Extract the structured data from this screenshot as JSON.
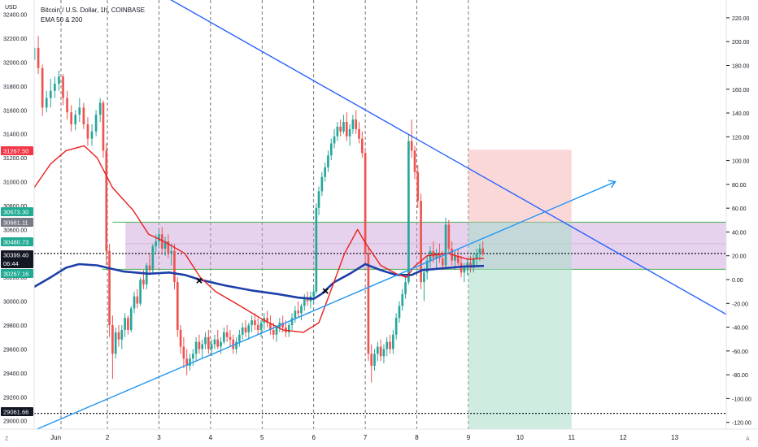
{
  "chart_data": {
    "type": "candlestick",
    "title": "Bitcoin / U.S. Dollar, 1h, COINBASE",
    "indicator": "EMA 50 & 200",
    "currency_label": "USD",
    "left_axis": {
      "ylim": [
        28930,
        32520
      ],
      "ticks": [
        29000,
        29200,
        29400,
        29600,
        29800,
        30000,
        30200,
        30400,
        30600,
        30800,
        31000,
        31200,
        31400,
        31600,
        31800,
        32000,
        32200,
        32400
      ],
      "tick_labels": [
        "29000.00",
        "29200.00",
        "29400.00",
        "29600.00",
        "29800.00",
        "30000.00",
        "30200.00",
        "30400.00",
        "30600.00",
        "30800.00",
        "31000.00",
        "31200.00",
        "31400.00",
        "31600.00",
        "31800.00",
        "32000.00",
        "32200.00",
        "32400.00"
      ]
    },
    "right_axis": {
      "ticks": [
        -120,
        -100,
        -80,
        -60,
        -40,
        -20,
        0,
        20,
        40,
        60,
        80,
        100,
        120,
        140,
        160,
        180,
        200,
        220
      ],
      "tick_labels": [
        "-120.00",
        "-100.00",
        "-80.00",
        "-60.00",
        "-40.00",
        "-20.00",
        "0.00",
        "20.00",
        "40.00",
        "60.00",
        "80.00",
        "100.00",
        "120.00",
        "140.00",
        "160.00",
        "180.00",
        "200.00",
        "220.00"
      ]
    },
    "x_axis": {
      "xlim": [
        0.58,
        14.0
      ],
      "ticks": [
        1,
        2,
        3,
        4,
        5,
        6,
        7,
        8,
        9,
        10,
        11,
        12,
        13
      ],
      "tick_labels": [
        "Jun",
        "2",
        "3",
        "4",
        "5",
        "6",
        "7",
        "8",
        "9",
        "10",
        "11",
        "12",
        "13"
      ]
    },
    "price_labels": [
      {
        "value": 31267.5,
        "text": "31267.50",
        "color": "#f23645"
      },
      {
        "value": 30673.3,
        "text": "30673.30",
        "color": "#22ab94"
      },
      {
        "value": 30661.11,
        "text": "30661.11",
        "color": "#787b86"
      },
      {
        "value": 30480.73,
        "text": "30480.73",
        "color": "#22ab94"
      },
      {
        "value": 30399.4,
        "text": "30399.40",
        "color": "#131722",
        "countdown": "06:44"
      },
      {
        "value": 30267.16,
        "text": "30267.16",
        "color": "#22ab94"
      },
      {
        "value": 29061.66,
        "text": "29061.66",
        "color": "#131722"
      }
    ],
    "range_box": {
      "x0": 2.35,
      "x1": 14.0,
      "top": 30661.11,
      "bottom": 30267.16,
      "color": "#c89bd8"
    },
    "short_position": {
      "x0": 9.0,
      "x1": 11.0,
      "entry": 30661.11,
      "stop": 31267.5,
      "target": 28930
    },
    "dotted_levels": [
      30399.4,
      29061.66
    ],
    "vertical_dashes": [
      1.1,
      2.0,
      3.0,
      4.0,
      5.0,
      6.0,
      7.0,
      8.0,
      9.0
    ],
    "trendlines": [
      {
        "name": "descending",
        "x0": 2.5,
        "y0": 32700,
        "x1": 14.0,
        "y1": 29890,
        "color": "#2962ff"
      },
      {
        "name": "ascending",
        "x0": 0.58,
        "y0": 28920,
        "x1": 11.85,
        "y1": 31000,
        "color": "#2196f3",
        "arrow": true
      }
    ],
    "markers": [
      {
        "x": 3.78,
        "y": 30172
      },
      {
        "x": 6.23,
        "y": 30085
      }
    ],
    "ema_fast": {
      "name": "EMA 50",
      "color": "#e91e1e",
      "points": [
        [
          0.58,
          30950
        ],
        [
          0.9,
          31150
        ],
        [
          1.2,
          31260
        ],
        [
          1.55,
          31300
        ],
        [
          1.8,
          31200
        ],
        [
          2.1,
          30950
        ],
        [
          2.5,
          30760
        ],
        [
          2.8,
          30560
        ],
        [
          3.1,
          30500
        ],
        [
          3.5,
          30400
        ],
        [
          3.8,
          30200
        ],
        [
          4.1,
          30080
        ],
        [
          4.5,
          29980
        ],
        [
          5.0,
          29850
        ],
        [
          5.4,
          29760
        ],
        [
          5.8,
          29740
        ],
        [
          6.1,
          29820
        ],
        [
          6.3,
          30050
        ],
        [
          6.6,
          30400
        ],
        [
          6.85,
          30600
        ],
        [
          7.0,
          30490
        ],
        [
          7.3,
          30300
        ],
        [
          7.6,
          30230
        ],
        [
          7.8,
          30200
        ],
        [
          7.95,
          30290
        ],
        [
          8.2,
          30380
        ],
        [
          8.6,
          30400
        ],
        [
          9.0,
          30350
        ],
        [
          9.3,
          30360
        ]
      ]
    },
    "ema_slow": {
      "name": "EMA 200",
      "color": "#1e3fa8",
      "points": [
        [
          0.58,
          30120
        ],
        [
          0.9,
          30200
        ],
        [
          1.2,
          30280
        ],
        [
          1.45,
          30310
        ],
        [
          1.8,
          30300
        ],
        [
          2.3,
          30250
        ],
        [
          2.8,
          30230
        ],
        [
          3.2,
          30240
        ],
        [
          3.5,
          30220
        ],
        [
          3.8,
          30180
        ],
        [
          4.3,
          30130
        ],
        [
          4.8,
          30090
        ],
        [
          5.3,
          30060
        ],
        [
          5.7,
          30030
        ],
        [
          6.0,
          30020
        ],
        [
          6.15,
          30060
        ],
        [
          6.4,
          30160
        ],
        [
          6.7,
          30230
        ],
        [
          7.0,
          30310
        ],
        [
          7.3,
          30260
        ],
        [
          7.6,
          30220
        ],
        [
          7.9,
          30220
        ],
        [
          8.1,
          30260
        ],
        [
          8.5,
          30275
        ],
        [
          8.9,
          30290
        ],
        [
          9.3,
          30295
        ]
      ]
    },
    "candles": [
      [
        0.58,
        32020,
        32180,
        31980,
        32120
      ],
      [
        0.66,
        32120,
        32220,
        31900,
        31950
      ],
      [
        0.74,
        31950,
        31980,
        31550,
        31620
      ],
      [
        0.82,
        31620,
        31760,
        31580,
        31700
      ],
      [
        0.9,
        31700,
        31860,
        31620,
        31760
      ],
      [
        0.98,
        31760,
        31880,
        31700,
        31820
      ],
      [
        1.06,
        31820,
        31930,
        31760,
        31880
      ],
      [
        1.14,
        31880,
        31900,
        31640,
        31700
      ],
      [
        1.22,
        31700,
        31760,
        31520,
        31580
      ],
      [
        1.3,
        31580,
        31640,
        31420,
        31480
      ],
      [
        1.38,
        31480,
        31600,
        31430,
        31560
      ],
      [
        1.46,
        31560,
        31700,
        31500,
        31620
      ],
      [
        1.54,
        31620,
        31660,
        31440,
        31480
      ],
      [
        1.62,
        31480,
        31540,
        31300,
        31360
      ],
      [
        1.7,
        31360,
        31480,
        31300,
        31420
      ],
      [
        1.78,
        31420,
        31600,
        31380,
        31560
      ],
      [
        1.86,
        31560,
        31700,
        31500,
        31660
      ],
      [
        1.92,
        31660,
        31680,
        31200,
        31260
      ],
      [
        1.98,
        31260,
        31320,
        30300,
        30420
      ],
      [
        2.04,
        30420,
        30480,
        29700,
        29800
      ],
      [
        2.1,
        29800,
        29880,
        29350,
        29560
      ],
      [
        2.16,
        29560,
        29780,
        29520,
        29740
      ],
      [
        2.22,
        29740,
        29800,
        29620,
        29680
      ],
      [
        2.28,
        29680,
        29800,
        29600,
        29760
      ],
      [
        2.34,
        29760,
        29900,
        29700,
        29860
      ],
      [
        2.4,
        29860,
        29880,
        29720,
        29760
      ],
      [
        2.46,
        29760,
        29960,
        29740,
        29940
      ],
      [
        2.52,
        29940,
        30080,
        29900,
        30040
      ],
      [
        2.58,
        30040,
        30100,
        29940,
        29980
      ],
      [
        2.64,
        29980,
        30200,
        29960,
        30180
      ],
      [
        2.7,
        30180,
        30260,
        30100,
        30140
      ],
      [
        2.76,
        30140,
        30320,
        30100,
        30300
      ],
      [
        2.82,
        30300,
        30400,
        30220,
        30260
      ],
      [
        2.88,
        30260,
        30480,
        30240,
        30460
      ],
      [
        2.94,
        30460,
        30560,
        30400,
        30500
      ],
      [
        3.0,
        30500,
        30600,
        30440,
        30560
      ],
      [
        3.06,
        30560,
        30620,
        30400,
        30440
      ],
      [
        3.12,
        30440,
        30540,
        30380,
        30500
      ],
      [
        3.18,
        30500,
        30560,
        30360,
        30400
      ],
      [
        3.24,
        30400,
        30480,
        30300,
        30420
      ],
      [
        3.3,
        30420,
        30480,
        30100,
        30160
      ],
      [
        3.36,
        30160,
        30200,
        29700,
        29760
      ],
      [
        3.42,
        29760,
        29800,
        29560,
        29620
      ],
      [
        3.48,
        29620,
        29700,
        29440,
        29520
      ],
      [
        3.54,
        29520,
        29600,
        29380,
        29460
      ],
      [
        3.6,
        29460,
        29560,
        29420,
        29520
      ],
      [
        3.66,
        29520,
        29600,
        29460,
        29560
      ],
      [
        3.72,
        29560,
        29700,
        29500,
        29660
      ],
      [
        3.78,
        29660,
        29720,
        29560,
        29600
      ],
      [
        3.84,
        29600,
        29680,
        29520,
        29640
      ],
      [
        3.9,
        29640,
        29740,
        29600,
        29700
      ],
      [
        3.96,
        29700,
        29760,
        29560,
        29600
      ],
      [
        4.02,
        29600,
        29680,
        29540,
        29640
      ],
      [
        4.08,
        29640,
        29720,
        29600,
        29680
      ],
      [
        4.14,
        29680,
        29760,
        29600,
        29620
      ],
      [
        4.2,
        29620,
        29700,
        29560,
        29660
      ],
      [
        4.26,
        29660,
        29780,
        29640,
        29740
      ],
      [
        4.32,
        29740,
        29800,
        29660,
        29700
      ],
      [
        4.38,
        29700,
        29760,
        29620,
        29680
      ],
      [
        4.44,
        29680,
        29720,
        29560,
        29600
      ],
      [
        4.5,
        29600,
        29700,
        29560,
        29660
      ],
      [
        4.56,
        29660,
        29760,
        29620,
        29720
      ],
      [
        4.62,
        29720,
        29820,
        29680,
        29780
      ],
      [
        4.68,
        29780,
        29840,
        29700,
        29740
      ],
      [
        4.74,
        29740,
        29820,
        29680,
        29800
      ],
      [
        4.8,
        29800,
        29880,
        29740,
        29840
      ],
      [
        4.86,
        29840,
        29900,
        29760,
        29800
      ],
      [
        4.92,
        29800,
        29860,
        29720,
        29760
      ],
      [
        4.98,
        29760,
        29840,
        29700,
        29820
      ],
      [
        5.04,
        29820,
        29900,
        29760,
        29860
      ],
      [
        5.1,
        29860,
        29920,
        29780,
        29820
      ],
      [
        5.16,
        29820,
        29880,
        29720,
        29760
      ],
      [
        5.22,
        29760,
        29820,
        29680,
        29720
      ],
      [
        5.28,
        29720,
        29800,
        29660,
        29780
      ],
      [
        5.34,
        29780,
        29860,
        29740,
        29820
      ],
      [
        5.4,
        29820,
        29880,
        29740,
        29780
      ],
      [
        5.46,
        29780,
        29840,
        29700,
        29740
      ],
      [
        5.52,
        29740,
        29820,
        29700,
        29800
      ],
      [
        5.58,
        29800,
        29900,
        29760,
        29860
      ],
      [
        5.64,
        29860,
        29960,
        29820,
        29920
      ],
      [
        5.7,
        29920,
        30000,
        29860,
        29900
      ],
      [
        5.76,
        29900,
        29980,
        29840,
        29960
      ],
      [
        5.82,
        29960,
        30060,
        29920,
        30020
      ],
      [
        5.88,
        30020,
        30080,
        29960,
        30000
      ],
      [
        5.94,
        30000,
        30080,
        29940,
        30040
      ],
      [
        6.0,
        30040,
        30120,
        29980,
        30080
      ],
      [
        6.05,
        30080,
        30820,
        30060,
        30780
      ],
      [
        6.1,
        30780,
        30960,
        30720,
        30920
      ],
      [
        6.16,
        30920,
        31080,
        30880,
        31040
      ],
      [
        6.22,
        31040,
        31160,
        31000,
        31120
      ],
      [
        6.28,
        31120,
        31260,
        31080,
        31220
      ],
      [
        6.34,
        31220,
        31360,
        31180,
        31320
      ],
      [
        6.4,
        31320,
        31440,
        31280,
        31380
      ],
      [
        6.46,
        31380,
        31500,
        31340,
        31460
      ],
      [
        6.52,
        31460,
        31520,
        31380,
        31420
      ],
      [
        6.58,
        31420,
        31560,
        31400,
        31500
      ],
      [
        6.64,
        31500,
        31580,
        31340,
        31380
      ],
      [
        6.7,
        31380,
        31480,
        31300,
        31440
      ],
      [
        6.76,
        31440,
        31560,
        31400,
        31520
      ],
      [
        6.82,
        31520,
        31600,
        31400,
        31440
      ],
      [
        6.88,
        31440,
        31500,
        31320,
        31360
      ],
      [
        6.94,
        31360,
        31420,
        31200,
        31240
      ],
      [
        7.0,
        31240,
        31280,
        30300,
        30400
      ],
      [
        7.06,
        30400,
        30460,
        29500,
        29560
      ],
      [
        7.12,
        29560,
        29640,
        29320,
        29460
      ],
      [
        7.18,
        29460,
        29600,
        29420,
        29560
      ],
      [
        7.24,
        29560,
        29660,
        29500,
        29620
      ],
      [
        7.3,
        29620,
        29680,
        29500,
        29540
      ],
      [
        7.36,
        29540,
        29640,
        29480,
        29600
      ],
      [
        7.42,
        29600,
        29700,
        29540,
        29660
      ],
      [
        7.48,
        29660,
        29720,
        29560,
        29600
      ],
      [
        7.54,
        29600,
        29760,
        29560,
        29720
      ],
      [
        7.6,
        29720,
        29900,
        29680,
        29860
      ],
      [
        7.66,
        29860,
        30000,
        29820,
        29960
      ],
      [
        7.72,
        29960,
        30100,
        29920,
        30060
      ],
      [
        7.78,
        30060,
        30200,
        30020,
        30160
      ],
      [
        7.84,
        30160,
        31400,
        30140,
        31340
      ],
      [
        7.9,
        31340,
        31520,
        31200,
        31260
      ],
      [
        7.96,
        31260,
        31300,
        31020,
        31080
      ],
      [
        8.02,
        31080,
        31140,
        30780,
        30840
      ],
      [
        8.08,
        30840,
        30900,
        30100,
        30160
      ],
      [
        8.14,
        30160,
        30280,
        30000,
        30240
      ],
      [
        8.2,
        30240,
        30380,
        30180,
        30340
      ],
      [
        8.26,
        30340,
        30460,
        30280,
        30420
      ],
      [
        8.32,
        30420,
        30500,
        30320,
        30360
      ],
      [
        8.38,
        30360,
        30440,
        30280,
        30400
      ],
      [
        8.44,
        30400,
        30480,
        30320,
        30360
      ],
      [
        8.5,
        30360,
        30420,
        30260,
        30300
      ],
      [
        8.56,
        30300,
        30700,
        30280,
        30640
      ],
      [
        8.62,
        30640,
        30680,
        30400,
        30440
      ],
      [
        8.68,
        30440,
        30500,
        30300,
        30340
      ],
      [
        8.74,
        30340,
        30420,
        30260,
        30380
      ],
      [
        8.8,
        30380,
        30440,
        30300,
        30320
      ],
      [
        8.86,
        30320,
        30380,
        30200,
        30240
      ],
      [
        8.92,
        30240,
        30320,
        30160,
        30280
      ],
      [
        8.98,
        30280,
        30360,
        30220,
        30320
      ],
      [
        9.04,
        30320,
        30380,
        30240,
        30280
      ],
      [
        9.1,
        30280,
        30400,
        30240,
        30360
      ],
      [
        9.16,
        30360,
        30440,
        30300,
        30400
      ],
      [
        9.22,
        30400,
        30480,
        30340,
        30440
      ],
      [
        9.28,
        30440,
        30500,
        30380,
        30400
      ]
    ],
    "candle_colors": {
      "up": "#26a69a",
      "down": "#ef5350"
    }
  },
  "ui": {
    "bottom_left_label": "Z",
    "bottom_right_label": "A"
  }
}
